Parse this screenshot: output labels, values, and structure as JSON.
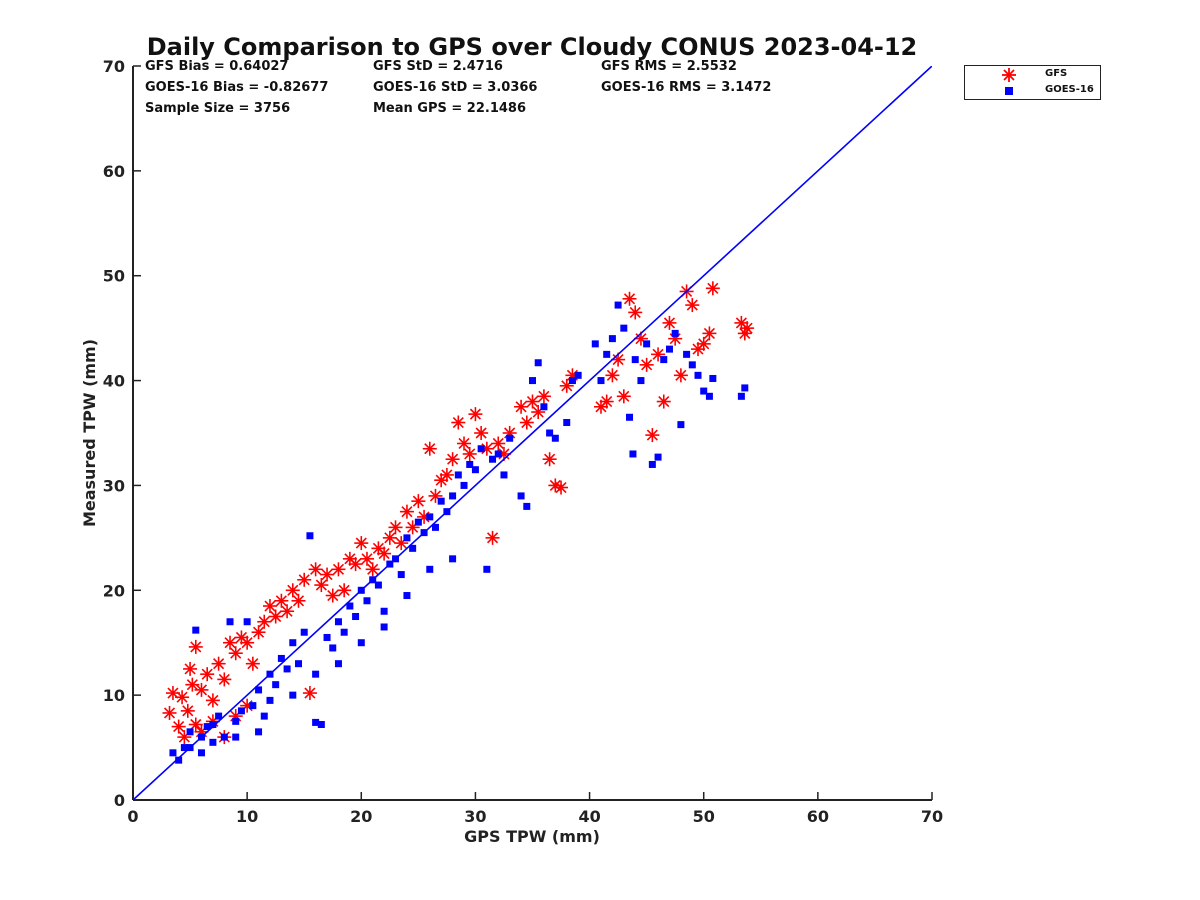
{
  "stats": {
    "row1": [
      "GFS Bias = 0.64027",
      "GFS StD = 2.4716",
      "GFS RMS = 2.5532"
    ],
    "row2": [
      "GOES-16 Bias = -0.82677",
      "GOES-16 StD = 3.0366",
      "GOES-16 RMS = 3.1472"
    ],
    "row3": [
      "Sample Size = 3756",
      "Mean GPS = 22.1486"
    ]
  },
  "legend": {
    "gfs": "GFS",
    "goes": "GOES-16"
  },
  "colors": {
    "gfs": "#ff0000",
    "goes": "#0000ff",
    "line": "#0000ff"
  },
  "chart_data": {
    "type": "scatter",
    "title": "Daily Comparison to GPS over Cloudy CONUS 2023-04-12",
    "xlabel": "GPS TPW (mm)",
    "ylabel": "Measured TPW (mm)",
    "xlim": [
      0,
      70
    ],
    "ylim": [
      0,
      70
    ],
    "xticks": [
      0,
      10,
      20,
      30,
      40,
      50,
      60,
      70
    ],
    "yticks": [
      0,
      10,
      20,
      30,
      40,
      50,
      60,
      70
    ],
    "grid": false,
    "legend_position": "outside-top-right",
    "reference_line": {
      "x": [
        0,
        70
      ],
      "y": [
        0,
        70
      ]
    },
    "series": [
      {
        "name": "GFS",
        "marker": "asterisk",
        "points": [
          [
            3.2,
            8.3
          ],
          [
            3.5,
            10.2
          ],
          [
            4.0,
            7.0
          ],
          [
            4.3,
            9.8
          ],
          [
            4.8,
            8.5
          ],
          [
            5.0,
            12.5
          ],
          [
            5.5,
            14.6
          ],
          [
            5.2,
            11.0
          ],
          [
            6.0,
            10.5
          ],
          [
            6.5,
            12.0
          ],
          [
            7.0,
            9.5
          ],
          [
            7.5,
            13.0
          ],
          [
            8.0,
            11.5
          ],
          [
            8.5,
            15.0
          ],
          [
            9.0,
            14.0
          ],
          [
            9.5,
            15.5
          ],
          [
            10.0,
            15.0
          ],
          [
            10.5,
            13.0
          ],
          [
            11.0,
            16.0
          ],
          [
            11.5,
            17.0
          ],
          [
            12.0,
            18.5
          ],
          [
            12.5,
            17.5
          ],
          [
            13.0,
            19.0
          ],
          [
            13.5,
            18.0
          ],
          [
            14.0,
            20.0
          ],
          [
            14.5,
            19.0
          ],
          [
            15.0,
            21.0
          ],
          [
            15.5,
            10.2
          ],
          [
            16.0,
            22.0
          ],
          [
            16.5,
            20.5
          ],
          [
            17.0,
            21.5
          ],
          [
            17.5,
            19.5
          ],
          [
            18.0,
            22.0
          ],
          [
            18.5,
            20.0
          ],
          [
            19.0,
            23.0
          ],
          [
            19.5,
            22.5
          ],
          [
            20.0,
            24.5
          ],
          [
            20.5,
            23.0
          ],
          [
            21.0,
            22.0
          ],
          [
            21.5,
            24.0
          ],
          [
            22.0,
            23.5
          ],
          [
            22.5,
            25.0
          ],
          [
            23.0,
            26.0
          ],
          [
            23.5,
            24.5
          ],
          [
            24.0,
            27.5
          ],
          [
            24.5,
            26.0
          ],
          [
            25.0,
            28.5
          ],
          [
            25.5,
            27.0
          ],
          [
            26.0,
            33.5
          ],
          [
            26.5,
            29.0
          ],
          [
            27.0,
            30.5
          ],
          [
            27.5,
            31.0
          ],
          [
            28.0,
            32.5
          ],
          [
            28.5,
            36.0
          ],
          [
            29.0,
            34.0
          ],
          [
            29.5,
            33.0
          ],
          [
            30.0,
            36.8
          ],
          [
            30.5,
            35.0
          ],
          [
            31.0,
            33.5
          ],
          [
            31.5,
            25.0
          ],
          [
            32.0,
            34.0
          ],
          [
            32.5,
            33.0
          ],
          [
            33.0,
            35.0
          ],
          [
            34.0,
            37.5
          ],
          [
            34.5,
            36.0
          ],
          [
            35.0,
            38.0
          ],
          [
            35.5,
            37.0
          ],
          [
            36.0,
            38.5
          ],
          [
            36.5,
            32.5
          ],
          [
            37.0,
            30.0
          ],
          [
            37.5,
            29.8
          ],
          [
            38.0,
            39.5
          ],
          [
            38.5,
            40.5
          ],
          [
            41.0,
            37.5
          ],
          [
            41.5,
            38.0
          ],
          [
            42.0,
            40.5
          ],
          [
            42.5,
            42.0
          ],
          [
            43.0,
            38.5
          ],
          [
            43.5,
            47.8
          ],
          [
            44.0,
            46.5
          ],
          [
            44.5,
            44.0
          ],
          [
            45.0,
            41.5
          ],
          [
            45.5,
            34.8
          ],
          [
            46.0,
            42.5
          ],
          [
            46.5,
            38.0
          ],
          [
            47.0,
            45.5
          ],
          [
            47.5,
            44.0
          ],
          [
            48.0,
            40.5
          ],
          [
            48.5,
            48.5
          ],
          [
            49.0,
            47.2
          ],
          [
            49.5,
            43.0
          ],
          [
            50.0,
            43.5
          ],
          [
            50.5,
            44.5
          ],
          [
            50.8,
            48.8
          ],
          [
            53.3,
            45.5
          ],
          [
            53.6,
            44.5
          ],
          [
            53.8,
            45.0
          ],
          [
            6.0,
            6.5
          ],
          [
            7.0,
            7.5
          ],
          [
            8.0,
            6.0
          ],
          [
            9.0,
            8.0
          ],
          [
            10.0,
            9.0
          ],
          [
            4.5,
            6.0
          ],
          [
            5.5,
            7.2
          ]
        ]
      },
      {
        "name": "GOES-16",
        "marker": "square",
        "points": [
          [
            3.5,
            4.5
          ],
          [
            4.0,
            3.8
          ],
          [
            4.5,
            5.0
          ],
          [
            5.0,
            6.5
          ],
          [
            5.5,
            16.2
          ],
          [
            6.0,
            4.5
          ],
          [
            6.5,
            7.0
          ],
          [
            7.0,
            5.5
          ],
          [
            7.5,
            8.0
          ],
          [
            8.0,
            6.0
          ],
          [
            8.5,
            17.0
          ],
          [
            9.0,
            7.5
          ],
          [
            9.5,
            8.5
          ],
          [
            10.0,
            17.0
          ],
          [
            10.5,
            9.0
          ],
          [
            11.0,
            10.5
          ],
          [
            11.5,
            8.0
          ],
          [
            12.0,
            12.0
          ],
          [
            12.5,
            11.0
          ],
          [
            13.0,
            13.5
          ],
          [
            13.5,
            12.5
          ],
          [
            14.0,
            15.0
          ],
          [
            14.5,
            13.0
          ],
          [
            15.0,
            16.0
          ],
          [
            15.5,
            25.2
          ],
          [
            16.0,
            7.4
          ],
          [
            16.5,
            7.2
          ],
          [
            17.0,
            15.5
          ],
          [
            17.5,
            14.5
          ],
          [
            18.0,
            17.0
          ],
          [
            18.5,
            16.0
          ],
          [
            19.0,
            18.5
          ],
          [
            19.5,
            17.5
          ],
          [
            20.0,
            20.0
          ],
          [
            20.5,
            19.0
          ],
          [
            21.0,
            21.0
          ],
          [
            21.5,
            20.5
          ],
          [
            22.0,
            18.0
          ],
          [
            22.5,
            22.5
          ],
          [
            23.0,
            23.0
          ],
          [
            23.5,
            21.5
          ],
          [
            24.0,
            25.0
          ],
          [
            24.5,
            24.0
          ],
          [
            25.0,
            26.5
          ],
          [
            25.5,
            25.5
          ],
          [
            26.0,
            27.0
          ],
          [
            26.5,
            26.0
          ],
          [
            27.0,
            28.5
          ],
          [
            27.5,
            27.5
          ],
          [
            28.0,
            29.0
          ],
          [
            28.5,
            31.0
          ],
          [
            29.0,
            30.0
          ],
          [
            29.5,
            32.0
          ],
          [
            30.0,
            31.5
          ],
          [
            30.5,
            33.5
          ],
          [
            31.0,
            22.0
          ],
          [
            31.5,
            32.5
          ],
          [
            32.0,
            33.0
          ],
          [
            32.5,
            31.0
          ],
          [
            33.0,
            34.5
          ],
          [
            34.0,
            29.0
          ],
          [
            34.5,
            28.0
          ],
          [
            35.0,
            40.0
          ],
          [
            35.5,
            41.7
          ],
          [
            36.0,
            37.5
          ],
          [
            36.5,
            35.0
          ],
          [
            37.0,
            34.5
          ],
          [
            38.0,
            36.0
          ],
          [
            38.5,
            40.0
          ],
          [
            39.0,
            40.5
          ],
          [
            40.5,
            43.5
          ],
          [
            41.0,
            40.0
          ],
          [
            41.5,
            42.5
          ],
          [
            42.0,
            44.0
          ],
          [
            42.5,
            47.2
          ],
          [
            43.0,
            45.0
          ],
          [
            43.5,
            36.5
          ],
          [
            43.8,
            33.0
          ],
          [
            44.0,
            42.0
          ],
          [
            44.5,
            40.0
          ],
          [
            45.0,
            43.5
          ],
          [
            45.5,
            32.0
          ],
          [
            46.0,
            32.7
          ],
          [
            46.5,
            42.0
          ],
          [
            47.0,
            43.0
          ],
          [
            47.5,
            44.5
          ],
          [
            48.0,
            35.8
          ],
          [
            48.5,
            42.5
          ],
          [
            49.0,
            41.5
          ],
          [
            49.5,
            40.5
          ],
          [
            50.0,
            39.0
          ],
          [
            50.5,
            38.5
          ],
          [
            50.8,
            40.2
          ],
          [
            53.3,
            38.5
          ],
          [
            53.6,
            39.3
          ],
          [
            5.0,
            5.0
          ],
          [
            6.0,
            6.0
          ],
          [
            7.0,
            7.2
          ],
          [
            9.0,
            6.0
          ],
          [
            11.0,
            6.5
          ],
          [
            12.0,
            9.5
          ],
          [
            14.0,
            10.0
          ],
          [
            16.0,
            12.0
          ],
          [
            18.0,
            13.0
          ],
          [
            20.0,
            15.0
          ],
          [
            22.0,
            16.5
          ],
          [
            24.0,
            19.5
          ],
          [
            26.0,
            22.0
          ],
          [
            28.0,
            23.0
          ]
        ]
      }
    ]
  }
}
